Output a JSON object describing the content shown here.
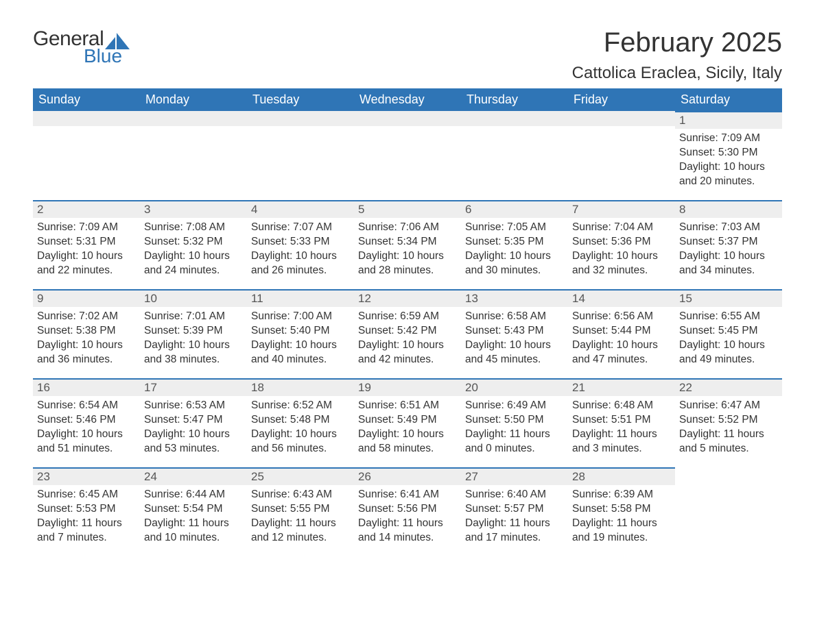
{
  "brand": {
    "general": "General",
    "blue": "Blue",
    "accent_color": "#2f75b6"
  },
  "title": "February 2025",
  "location": "Cattolica Eraclea, Sicily, Italy",
  "weekdays": [
    "Sunday",
    "Monday",
    "Tuesday",
    "Wednesday",
    "Thursday",
    "Friday",
    "Saturday"
  ],
  "colors": {
    "header_bg": "#2f75b6",
    "header_text": "#ffffff",
    "daynum_bg": "#eeeeee",
    "daynum_border": "#2f75b6",
    "body_text": "#333333"
  },
  "weeks": [
    [
      null,
      null,
      null,
      null,
      null,
      null,
      {
        "d": "1",
        "sunrise": "Sunrise: 7:09 AM",
        "sunset": "Sunset: 5:30 PM",
        "daylight": "Daylight: 10 hours and 20 minutes."
      }
    ],
    [
      {
        "d": "2",
        "sunrise": "Sunrise: 7:09 AM",
        "sunset": "Sunset: 5:31 PM",
        "daylight": "Daylight: 10 hours and 22 minutes."
      },
      {
        "d": "3",
        "sunrise": "Sunrise: 7:08 AM",
        "sunset": "Sunset: 5:32 PM",
        "daylight": "Daylight: 10 hours and 24 minutes."
      },
      {
        "d": "4",
        "sunrise": "Sunrise: 7:07 AM",
        "sunset": "Sunset: 5:33 PM",
        "daylight": "Daylight: 10 hours and 26 minutes."
      },
      {
        "d": "5",
        "sunrise": "Sunrise: 7:06 AM",
        "sunset": "Sunset: 5:34 PM",
        "daylight": "Daylight: 10 hours and 28 minutes."
      },
      {
        "d": "6",
        "sunrise": "Sunrise: 7:05 AM",
        "sunset": "Sunset: 5:35 PM",
        "daylight": "Daylight: 10 hours and 30 minutes."
      },
      {
        "d": "7",
        "sunrise": "Sunrise: 7:04 AM",
        "sunset": "Sunset: 5:36 PM",
        "daylight": "Daylight: 10 hours and 32 minutes."
      },
      {
        "d": "8",
        "sunrise": "Sunrise: 7:03 AM",
        "sunset": "Sunset: 5:37 PM",
        "daylight": "Daylight: 10 hours and 34 minutes."
      }
    ],
    [
      {
        "d": "9",
        "sunrise": "Sunrise: 7:02 AM",
        "sunset": "Sunset: 5:38 PM",
        "daylight": "Daylight: 10 hours and 36 minutes."
      },
      {
        "d": "10",
        "sunrise": "Sunrise: 7:01 AM",
        "sunset": "Sunset: 5:39 PM",
        "daylight": "Daylight: 10 hours and 38 minutes."
      },
      {
        "d": "11",
        "sunrise": "Sunrise: 7:00 AM",
        "sunset": "Sunset: 5:40 PM",
        "daylight": "Daylight: 10 hours and 40 minutes."
      },
      {
        "d": "12",
        "sunrise": "Sunrise: 6:59 AM",
        "sunset": "Sunset: 5:42 PM",
        "daylight": "Daylight: 10 hours and 42 minutes."
      },
      {
        "d": "13",
        "sunrise": "Sunrise: 6:58 AM",
        "sunset": "Sunset: 5:43 PM",
        "daylight": "Daylight: 10 hours and 45 minutes."
      },
      {
        "d": "14",
        "sunrise": "Sunrise: 6:56 AM",
        "sunset": "Sunset: 5:44 PM",
        "daylight": "Daylight: 10 hours and 47 minutes."
      },
      {
        "d": "15",
        "sunrise": "Sunrise: 6:55 AM",
        "sunset": "Sunset: 5:45 PM",
        "daylight": "Daylight: 10 hours and 49 minutes."
      }
    ],
    [
      {
        "d": "16",
        "sunrise": "Sunrise: 6:54 AM",
        "sunset": "Sunset: 5:46 PM",
        "daylight": "Daylight: 10 hours and 51 minutes."
      },
      {
        "d": "17",
        "sunrise": "Sunrise: 6:53 AM",
        "sunset": "Sunset: 5:47 PM",
        "daylight": "Daylight: 10 hours and 53 minutes."
      },
      {
        "d": "18",
        "sunrise": "Sunrise: 6:52 AM",
        "sunset": "Sunset: 5:48 PM",
        "daylight": "Daylight: 10 hours and 56 minutes."
      },
      {
        "d": "19",
        "sunrise": "Sunrise: 6:51 AM",
        "sunset": "Sunset: 5:49 PM",
        "daylight": "Daylight: 10 hours and 58 minutes."
      },
      {
        "d": "20",
        "sunrise": "Sunrise: 6:49 AM",
        "sunset": "Sunset: 5:50 PM",
        "daylight": "Daylight: 11 hours and 0 minutes."
      },
      {
        "d": "21",
        "sunrise": "Sunrise: 6:48 AM",
        "sunset": "Sunset: 5:51 PM",
        "daylight": "Daylight: 11 hours and 3 minutes."
      },
      {
        "d": "22",
        "sunrise": "Sunrise: 6:47 AM",
        "sunset": "Sunset: 5:52 PM",
        "daylight": "Daylight: 11 hours and 5 minutes."
      }
    ],
    [
      {
        "d": "23",
        "sunrise": "Sunrise: 6:45 AM",
        "sunset": "Sunset: 5:53 PM",
        "daylight": "Daylight: 11 hours and 7 minutes."
      },
      {
        "d": "24",
        "sunrise": "Sunrise: 6:44 AM",
        "sunset": "Sunset: 5:54 PM",
        "daylight": "Daylight: 11 hours and 10 minutes."
      },
      {
        "d": "25",
        "sunrise": "Sunrise: 6:43 AM",
        "sunset": "Sunset: 5:55 PM",
        "daylight": "Daylight: 11 hours and 12 minutes."
      },
      {
        "d": "26",
        "sunrise": "Sunrise: 6:41 AM",
        "sunset": "Sunset: 5:56 PM",
        "daylight": "Daylight: 11 hours and 14 minutes."
      },
      {
        "d": "27",
        "sunrise": "Sunrise: 6:40 AM",
        "sunset": "Sunset: 5:57 PM",
        "daylight": "Daylight: 11 hours and 17 minutes."
      },
      {
        "d": "28",
        "sunrise": "Sunrise: 6:39 AM",
        "sunset": "Sunset: 5:58 PM",
        "daylight": "Daylight: 11 hours and 19 minutes."
      },
      null
    ]
  ]
}
